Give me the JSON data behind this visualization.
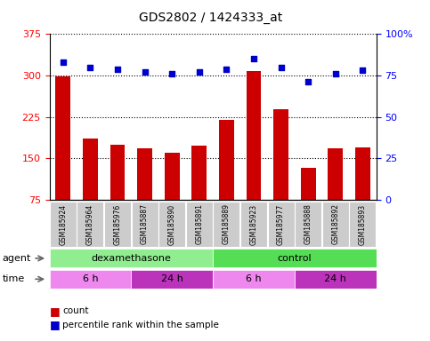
{
  "title": "GDS2802 / 1424333_at",
  "samples": [
    "GSM185924",
    "GSM185964",
    "GSM185976",
    "GSM185887",
    "GSM185890",
    "GSM185891",
    "GSM185889",
    "GSM185923",
    "GSM185977",
    "GSM185888",
    "GSM185892",
    "GSM185893"
  ],
  "counts": [
    298,
    185,
    175,
    168,
    160,
    172,
    220,
    308,
    238,
    132,
    168,
    170
  ],
  "percentile_ranks": [
    83,
    80,
    79,
    77,
    76,
    77,
    79,
    85,
    80,
    71,
    76,
    78
  ],
  "ylim_left": [
    75,
    375
  ],
  "ylim_right": [
    0,
    100
  ],
  "yticks_left": [
    75,
    150,
    225,
    300,
    375
  ],
  "yticks_right": [
    0,
    25,
    50,
    75,
    100
  ],
  "bar_color": "#cc0000",
  "dot_color": "#0000cc",
  "grid_color": "#000000",
  "agent_groups": [
    {
      "label": "dexamethasone",
      "start": 0,
      "end": 6,
      "color": "#90ee90"
    },
    {
      "label": "control",
      "start": 6,
      "end": 12,
      "color": "#55dd55"
    }
  ],
  "time_groups": [
    {
      "label": "6 h",
      "start": 0,
      "end": 3,
      "color": "#ee88ee"
    },
    {
      "label": "24 h",
      "start": 3,
      "end": 6,
      "color": "#bb33bb"
    },
    {
      "label": "6 h",
      "start": 6,
      "end": 9,
      "color": "#ee88ee"
    },
    {
      "label": "24 h",
      "start": 9,
      "end": 12,
      "color": "#bb33bb"
    }
  ],
  "tick_label_bg": "#cccccc",
  "agent_label": "agent",
  "time_label": "time",
  "legend_count_color": "#cc0000",
  "legend_dot_color": "#0000cc"
}
